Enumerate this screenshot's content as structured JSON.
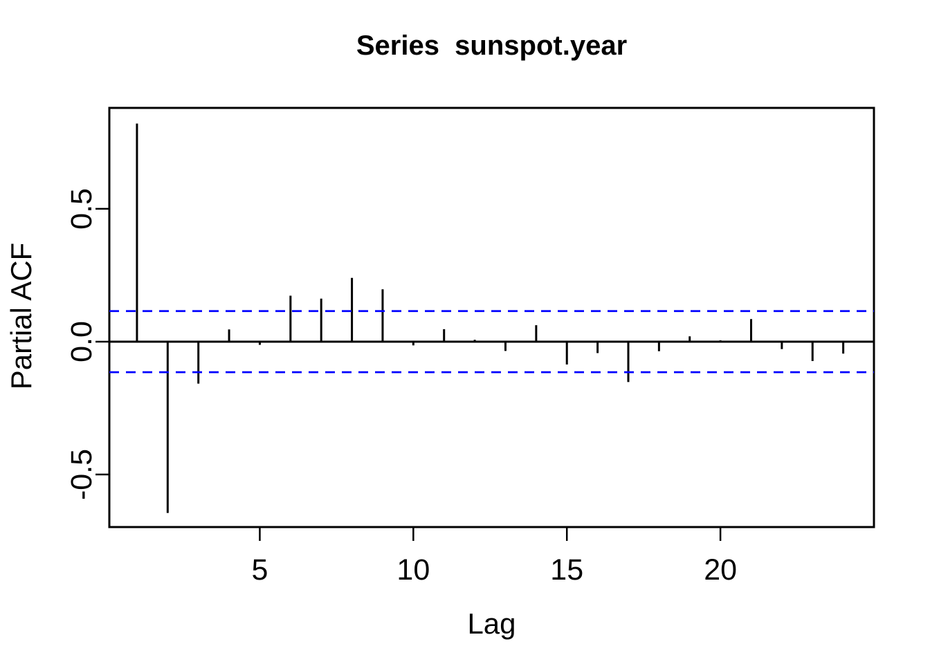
{
  "chart_data": {
    "type": "bar",
    "subtype": "partial-autocorrelation-stick-plot",
    "title": "Series  sunspot.year",
    "xlabel": "Lag",
    "ylabel": "Partial ACF",
    "x": [
      1,
      2,
      3,
      4,
      5,
      6,
      7,
      8,
      9,
      10,
      11,
      12,
      13,
      14,
      15,
      16,
      17,
      18,
      19,
      20,
      21,
      22,
      23,
      24
    ],
    "values": [
      0.821,
      -0.645,
      -0.158,
      0.046,
      -0.012,
      0.173,
      0.162,
      0.24,
      0.197,
      -0.014,
      0.047,
      0.007,
      -0.035,
      0.062,
      -0.086,
      -0.043,
      -0.152,
      -0.036,
      0.02,
      0.005,
      0.085,
      -0.028,
      -0.073,
      -0.045
    ],
    "confidence_bounds": [
      0.115,
      -0.115
    ],
    "confidence_line_style": "dashed",
    "confidence_line_color": "#0000FF",
    "bar_color": "#000000",
    "axis_color": "#000000",
    "background_color": "#FFFFFF",
    "x_ticks": [
      5,
      10,
      15,
      20
    ],
    "x_tick_labels": [
      "5",
      "10",
      "15",
      "20"
    ],
    "y_ticks": [
      0.5,
      0.0,
      -0.5
    ],
    "y_tick_labels": [
      "0.5",
      "0.0",
      "-0.5"
    ],
    "xlim": [
      0.1,
      25.0
    ],
    "ylim": [
      -0.698,
      0.88
    ],
    "grid": false,
    "legend": "none"
  }
}
